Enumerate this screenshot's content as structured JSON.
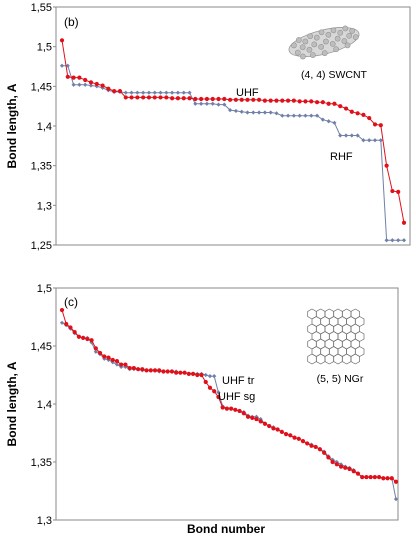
{
  "chart_data": [
    {
      "type": "line",
      "panel_label": "(b)",
      "ylabel": "Bond length, A",
      "xlabel": "",
      "ylim": [
        1.25,
        1.55
      ],
      "yticks": [
        "1,25",
        "1,3",
        "1,35",
        "1,4",
        "1,45",
        "1,5",
        "1,55"
      ],
      "ytick_values": [
        1.25,
        1.3,
        1.35,
        1.4,
        1.45,
        1.5,
        1.55
      ],
      "inset_caption": "(4, 4) SWCNT",
      "annotations": [
        "UHF",
        "RHF"
      ],
      "grid": false,
      "x_count": 60,
      "series": [
        {
          "name": "UHF",
          "color": "#e0101a",
          "values": [
            1.508,
            1.462,
            1.461,
            1.461,
            1.458,
            1.455,
            1.453,
            1.451,
            1.447,
            1.444,
            1.444,
            1.436,
            1.436,
            1.436,
            1.436,
            1.436,
            1.436,
            1.436,
            1.436,
            1.435,
            1.435,
            1.435,
            1.435,
            1.434,
            1.434,
            1.434,
            1.434,
            1.434,
            1.434,
            1.433,
            1.433,
            1.433,
            1.433,
            1.433,
            1.433,
            1.432,
            1.432,
            1.432,
            1.432,
            1.432,
            1.432,
            1.431,
            1.431,
            1.431,
            1.43,
            1.43,
            1.428,
            1.428,
            1.425,
            1.422,
            1.418,
            1.416,
            1.414,
            1.41,
            1.402,
            1.401,
            1.35,
            1.318,
            1.317,
            1.278
          ]
        },
        {
          "name": "RHF",
          "color": "#7080a8",
          "values": [
            1.476,
            1.476,
            1.452,
            1.452,
            1.452,
            1.451,
            1.45,
            1.448,
            1.445,
            1.443,
            1.443,
            1.442,
            1.442,
            1.442,
            1.442,
            1.442,
            1.442,
            1.442,
            1.442,
            1.442,
            1.442,
            1.442,
            1.442,
            1.428,
            1.428,
            1.428,
            1.428,
            1.427,
            1.427,
            1.42,
            1.419,
            1.418,
            1.417,
            1.417,
            1.417,
            1.417,
            1.417,
            1.416,
            1.413,
            1.413,
            1.413,
            1.413,
            1.413,
            1.413,
            1.413,
            1.408,
            1.406,
            1.404,
            1.388,
            1.388,
            1.388,
            1.388,
            1.382,
            1.382,
            1.382,
            1.382,
            1.256,
            1.256,
            1.256,
            1.256
          ]
        }
      ]
    },
    {
      "type": "line",
      "panel_label": "(c)",
      "ylabel": "Bond length, A",
      "xlabel": "Bond number",
      "ylim": [
        1.3,
        1.5
      ],
      "yticks": [
        "1,3",
        "1,35",
        "1,4",
        "1,45",
        "1,5"
      ],
      "ytick_values": [
        1.3,
        1.35,
        1.4,
        1.45,
        1.5
      ],
      "inset_caption": "(5, 5) NGr",
      "annotations": [
        "UHF tr",
        "UHF sg"
      ],
      "grid": false,
      "x_count": 80,
      "series": [
        {
          "name": "UHF sg",
          "color": "#e0101a",
          "values": [
            1.481,
            1.469,
            1.466,
            1.462,
            1.458,
            1.457,
            1.456,
            1.455,
            1.448,
            1.444,
            1.441,
            1.44,
            1.438,
            1.437,
            1.434,
            1.434,
            1.431,
            1.431,
            1.43,
            1.43,
            1.429,
            1.429,
            1.429,
            1.429,
            1.428,
            1.428,
            1.428,
            1.427,
            1.427,
            1.427,
            1.426,
            1.426,
            1.425,
            1.425,
            1.419,
            1.414,
            1.411,
            1.406,
            1.397,
            1.396,
            1.396,
            1.395,
            1.394,
            1.392,
            1.389,
            1.388,
            1.387,
            1.385,
            1.383,
            1.381,
            1.379,
            1.378,
            1.376,
            1.374,
            1.373,
            1.371,
            1.37,
            1.368,
            1.366,
            1.364,
            1.363,
            1.361,
            1.358,
            1.354,
            1.35,
            1.348,
            1.346,
            1.345,
            1.344,
            1.342,
            1.34,
            1.337,
            1.337,
            1.337,
            1.337,
            1.337,
            1.336,
            1.336,
            1.336,
            1.333
          ]
        },
        {
          "name": "UHF tr",
          "color": "#7080a8",
          "values": [
            1.47,
            1.468,
            1.465,
            1.461,
            1.458,
            1.457,
            1.457,
            1.453,
            1.445,
            1.443,
            1.439,
            1.438,
            1.436,
            1.434,
            1.432,
            1.432,
            1.43,
            1.43,
            1.43,
            1.429,
            1.429,
            1.429,
            1.429,
            1.428,
            1.428,
            1.428,
            1.428,
            1.428,
            1.427,
            1.427,
            1.426,
            1.426,
            1.426,
            1.426,
            1.425,
            1.424,
            1.424,
            1.41,
            1.398,
            1.396,
            1.396,
            1.395,
            1.394,
            1.393,
            1.39,
            1.389,
            1.389,
            1.387,
            1.383,
            1.381,
            1.38,
            1.378,
            1.376,
            1.374,
            1.373,
            1.371,
            1.37,
            1.368,
            1.366,
            1.365,
            1.363,
            1.361,
            1.359,
            1.355,
            1.352,
            1.35,
            1.348,
            1.346,
            1.345,
            1.343,
            1.34,
            1.337,
            1.337,
            1.337,
            1.337,
            1.337,
            1.336,
            1.336,
            1.336,
            1.318
          ]
        }
      ]
    }
  ]
}
